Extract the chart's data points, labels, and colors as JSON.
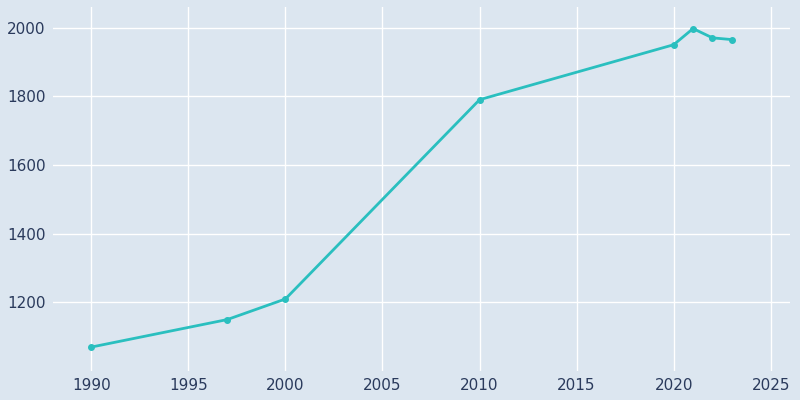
{
  "years": [
    1990,
    1997,
    2000,
    2010,
    2020,
    2021,
    2022,
    2023
  ],
  "population": [
    1070,
    1150,
    1210,
    1790,
    1950,
    1997,
    1970,
    1965
  ],
  "line_color": "#2abfbf",
  "marker": "o",
  "marker_size": 4,
  "line_width": 2.0,
  "bg_color": "#dce6f0",
  "plot_bg_color": "#dce6f0",
  "grid_color": "#ffffff",
  "tick_label_color": "#2a3a5c",
  "xlim": [
    1988,
    2026
  ],
  "ylim": [
    1000,
    2060
  ],
  "yticks": [
    1200,
    1400,
    1600,
    1800,
    2000
  ],
  "xticks": [
    1990,
    1995,
    2000,
    2005,
    2010,
    2015,
    2020,
    2025
  ],
  "tick_fontsize": 11
}
